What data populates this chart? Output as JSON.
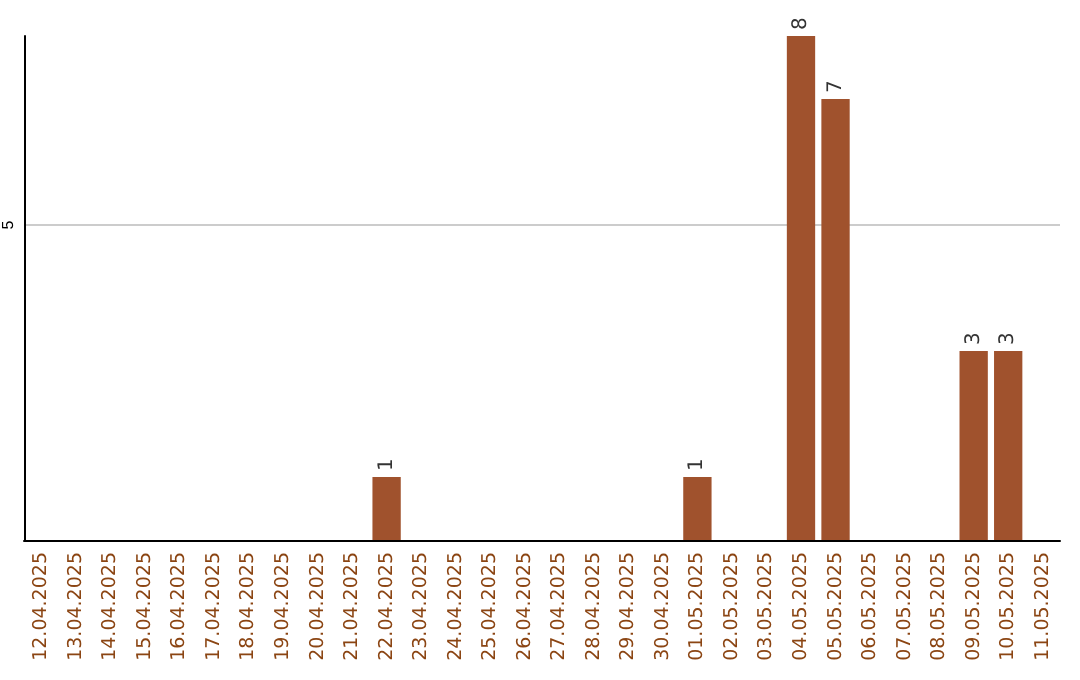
{
  "chart_data": {
    "type": "bar",
    "categories": [
      "12.04.2025",
      "13.04.2025",
      "14.04.2025",
      "15.04.2025",
      "16.04.2025",
      "17.04.2025",
      "18.04.2025",
      "19.04.2025",
      "20.04.2025",
      "21.04.2025",
      "22.04.2025",
      "23.04.2025",
      "24.04.2025",
      "25.04.2025",
      "26.04.2025",
      "27.04.2025",
      "28.04.2025",
      "29.04.2025",
      "30.04.2025",
      "01.05.2025",
      "02.05.2025",
      "03.05.2025",
      "04.05.2025",
      "05.05.2025",
      "06.05.2025",
      "07.05.2025",
      "08.05.2025",
      "09.05.2025",
      "10.05.2025",
      "11.05.2025"
    ],
    "values": [
      0,
      0,
      0,
      0,
      0,
      0,
      0,
      0,
      0,
      0,
      1,
      0,
      0,
      0,
      0,
      0,
      0,
      0,
      0,
      1,
      0,
      0,
      8,
      7,
      0,
      0,
      0,
      3,
      3,
      0
    ],
    "value_labels": [
      null,
      null,
      null,
      null,
      null,
      null,
      null,
      null,
      null,
      null,
      "1",
      null,
      null,
      null,
      null,
      null,
      null,
      null,
      null,
      "1",
      null,
      null,
      "8",
      "7",
      null,
      null,
      null,
      "3",
      "3",
      null
    ],
    "color": "#a0522d",
    "ylim": [
      0,
      8
    ],
    "yticks": [
      5
    ],
    "grid": "y"
  }
}
